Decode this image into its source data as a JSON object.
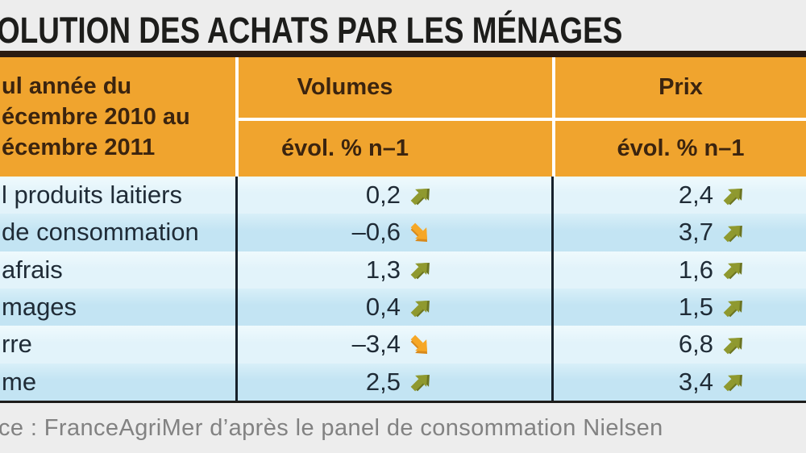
{
  "title": "OLUTION DES ACHATS PAR LES MÉNAGES",
  "table": {
    "period_lines": [
      "ul année du",
      "écembre 2010 au",
      "écembre 2011"
    ],
    "columns": {
      "volumes": "Volumes",
      "prix": "Prix",
      "sub": "évol. % n–1"
    },
    "rows": [
      {
        "label": "l produits laitiers",
        "volume": {
          "value": "0,2",
          "dir": "up"
        },
        "price": {
          "value": "2,4",
          "dir": "up"
        }
      },
      {
        "label": "de consommation",
        "volume": {
          "value": "–0,6",
          "dir": "down"
        },
        "price": {
          "value": "3,7",
          "dir": "up"
        }
      },
      {
        "label": "afrais",
        "volume": {
          "value": "1,3",
          "dir": "up"
        },
        "price": {
          "value": "1,6",
          "dir": "up"
        }
      },
      {
        "label": "mages",
        "volume": {
          "value": "0,4",
          "dir": "up"
        },
        "price": {
          "value": "1,5",
          "dir": "up"
        }
      },
      {
        "label": "rre",
        "volume": {
          "value": "–3,4",
          "dir": "down"
        },
        "price": {
          "value": "6,8",
          "dir": "up"
        }
      },
      {
        "label": "me",
        "volume": {
          "value": "2,5",
          "dir": "up"
        },
        "price": {
          "value": "3,4",
          "dir": "up"
        }
      }
    ]
  },
  "source": "ce : FranceAgriMer d’après le panel de consommation Nielsen",
  "colors": {
    "background": "#EDEDED",
    "header_orange": "#F0A42E",
    "header_text": "#3B240F",
    "row_light": "#E7F5FB",
    "row_dark": "#C6E6F4",
    "body_text": "#1F2B36",
    "dark_bar": "#2A1B12",
    "divider": "#16212B",
    "arrow_up": "#8F992F",
    "arrow_up_shadow": "#6B7421",
    "arrow_down": "#F6A726",
    "arrow_down_shadow": "#D8891A",
    "source_text": "#828282"
  },
  "chart_data": {
    "type": "table",
    "title": "OLUTION DES ACHATS PAR LES MÉNAGES",
    "period": "ul année du écembre 2010 au écembre 2011",
    "columns": [
      "Volumes évol. % n–1",
      "Prix évol. % n–1"
    ],
    "rows": [
      {
        "category": "l produits laitiers",
        "volumes_evol_pct": 0.2,
        "volumes_trend": "up",
        "prix_evol_pct": 2.4,
        "prix_trend": "up"
      },
      {
        "category": "de consommation",
        "volumes_evol_pct": -0.6,
        "volumes_trend": "down",
        "prix_evol_pct": 3.7,
        "prix_trend": "up"
      },
      {
        "category": "afrais",
        "volumes_evol_pct": 1.3,
        "volumes_trend": "up",
        "prix_evol_pct": 1.6,
        "prix_trend": "up"
      },
      {
        "category": "mages",
        "volumes_evol_pct": 0.4,
        "volumes_trend": "up",
        "prix_evol_pct": 1.5,
        "prix_trend": "up"
      },
      {
        "category": "rre",
        "volumes_evol_pct": -3.4,
        "volumes_trend": "down",
        "prix_evol_pct": 6.8,
        "prix_trend": "up"
      },
      {
        "category": "me",
        "volumes_evol_pct": 2.5,
        "volumes_trend": "up",
        "prix_evol_pct": 3.4,
        "prix_trend": "up"
      }
    ],
    "source": "ce : FranceAgriMer d’après le panel de consommation Nielsen"
  }
}
